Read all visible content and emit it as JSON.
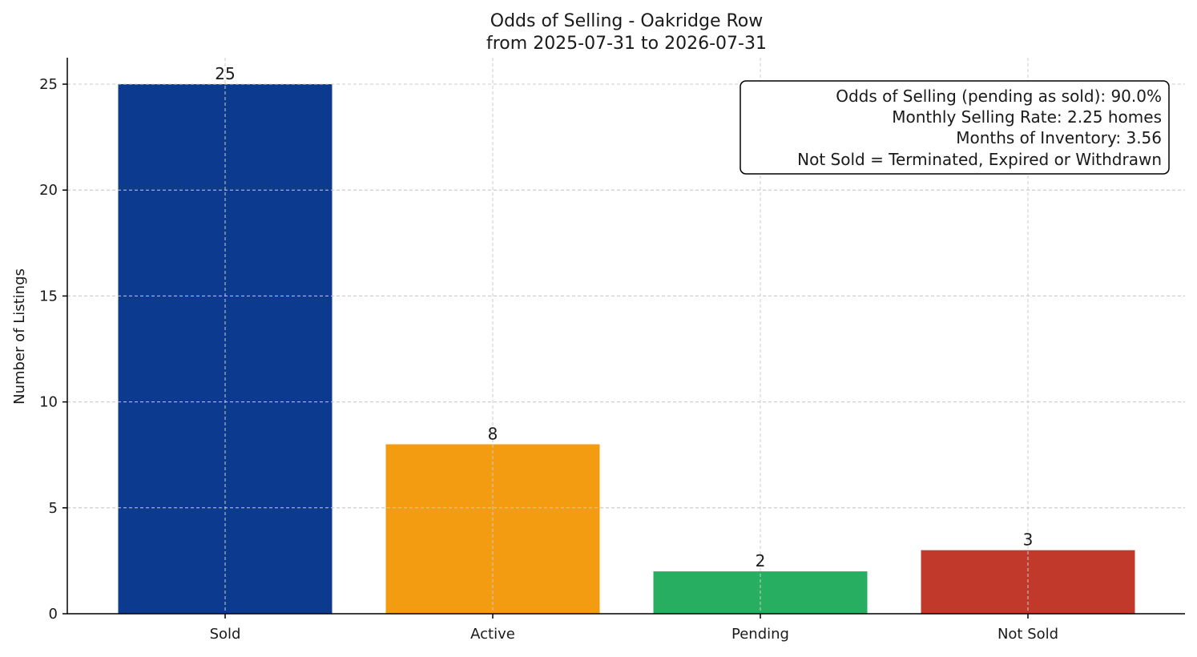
{
  "chart_data": {
    "type": "bar",
    "title": "Odds of Selling - Oakridge Row",
    "subtitle": "from 2025-07-31 to 2026-07-31",
    "xlabel": "",
    "ylabel": "Number of Listings",
    "categories": [
      "Sold",
      "Active",
      "Pending",
      "Not Sold"
    ],
    "values": [
      25,
      8,
      2,
      3
    ],
    "bar_labels": [
      "25",
      "8",
      "2",
      "3"
    ],
    "colors": [
      "#0b3a8f",
      "#f39c12",
      "#27ae60",
      "#c0392b"
    ],
    "ylim": [
      0,
      26.25
    ],
    "yticks": [
      0,
      5,
      10,
      15,
      20,
      25
    ],
    "grid": true,
    "legend": "none",
    "annotation_box": {
      "placement": "top-right",
      "lines": [
        "Odds of Selling (pending as sold): 90.0%",
        "Monthly Selling Rate: 2.25 homes",
        "Months of Inventory: 3.56",
        "Not Sold = Terminated, Expired or Withdrawn"
      ]
    }
  }
}
